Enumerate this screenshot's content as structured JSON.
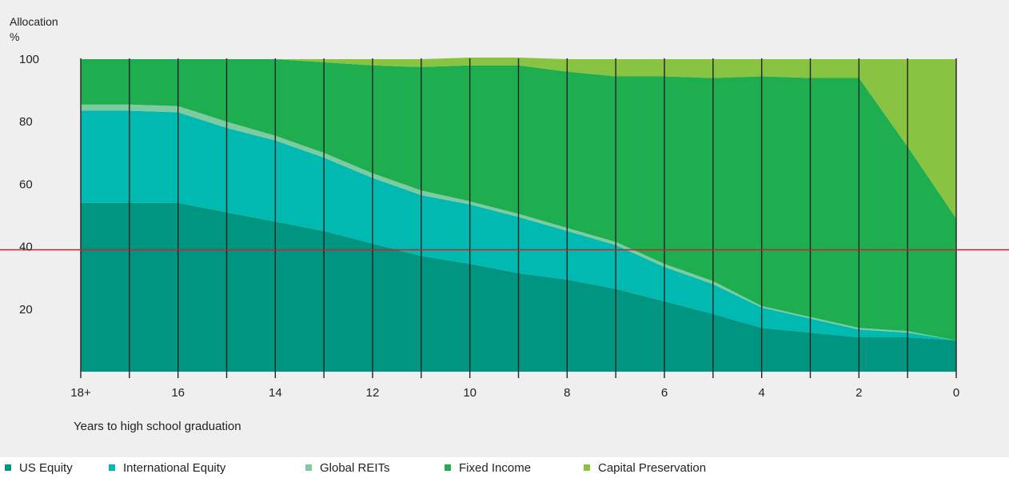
{
  "chart_data": {
    "type": "area",
    "stacked": true,
    "ylabel": "Allocation\n%",
    "xlabel": "Years to high school graduation",
    "xlim": [
      18,
      0
    ],
    "ylim": [
      0,
      100
    ],
    "x_tick_labels": [
      "18+",
      "16",
      "14",
      "12",
      "10",
      "8",
      "6",
      "4",
      "2",
      "0"
    ],
    "y_tick_labels": [
      "20",
      "40",
      "60",
      "80",
      "100"
    ],
    "grid": "vertical lines at each year",
    "reference_line_y": 39,
    "x": [
      18,
      17,
      16,
      15,
      14,
      13,
      12,
      11,
      10,
      9,
      8,
      7,
      6,
      5,
      4,
      3,
      2,
      1,
      0
    ],
    "series": [
      {
        "name": "US Equity",
        "color": "#009580",
        "values": [
          54,
          54,
          54,
          51,
          48,
          45,
          41,
          37,
          34.5,
          31.5,
          29.5,
          26.5,
          22.5,
          18.5,
          14,
          12.5,
          11,
          11,
          10
        ]
      },
      {
        "name": "International Equity",
        "color": "#00b9b0",
        "values": [
          29.5,
          29.5,
          29,
          27,
          26,
          23.5,
          21,
          19.5,
          19,
          18,
          15.5,
          14,
          11,
          9.5,
          6.5,
          4.5,
          2.5,
          1.5,
          0
        ]
      },
      {
        "name": "Global REITs",
        "color": "#7fcba0",
        "values": [
          2,
          2,
          2,
          2,
          1.5,
          1.5,
          1.5,
          1.5,
          1,
          1,
          1,
          1,
          1,
          1,
          0.5,
          0.5,
          0.5,
          0.5,
          0
        ]
      },
      {
        "name": "Fixed Income",
        "color": "#1eae50",
        "values": [
          14.5,
          14.5,
          15,
          20,
          24.5,
          29,
          34.5,
          39.5,
          43.5,
          47.5,
          50,
          53,
          60,
          65,
          73.5,
          76.5,
          80,
          59,
          39
        ]
      },
      {
        "name": "Capital Preservation",
        "color": "#88c442",
        "values": [
          0,
          0,
          0,
          0,
          0,
          1,
          2,
          2.5,
          2.5,
          2.5,
          4,
          5.5,
          5.5,
          6,
          5.5,
          6,
          6,
          28,
          51
        ]
      }
    ]
  },
  "colors": {
    "axis": "#222222",
    "reference_line": "#c0272d",
    "panel_bg": "#efefef"
  }
}
